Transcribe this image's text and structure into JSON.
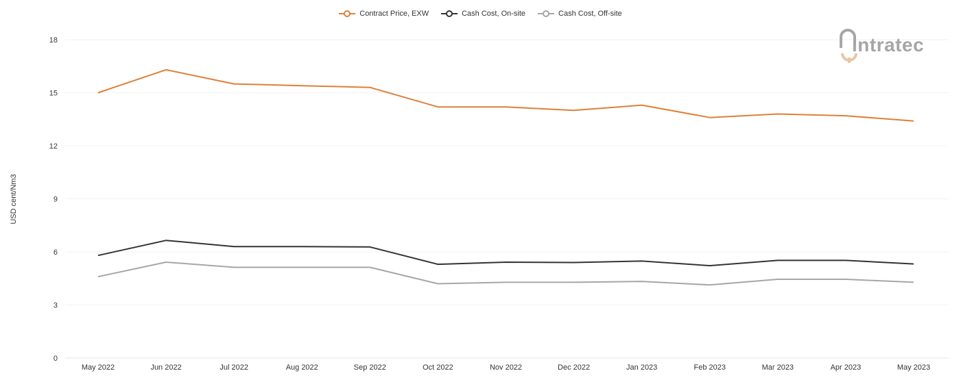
{
  "chart_data": {
    "type": "line",
    "title": "",
    "xlabel": "",
    "ylabel": "USD cent/Nm3",
    "categories": [
      "May 2022",
      "Jun 2022",
      "Jul 2022",
      "Aug 2022",
      "Sep 2022",
      "Oct 2022",
      "Nov 2022",
      "Dec 2022",
      "Jan 2023",
      "Feb 2023",
      "Mar 2023",
      "Apr 2023",
      "May 2023"
    ],
    "ylim": [
      0,
      18
    ],
    "yticks": [
      "0",
      "3",
      "6",
      "9",
      "12",
      "15",
      "18"
    ],
    "grid": true,
    "legend_position": "top-center",
    "series": [
      {
        "name": "Contract Price, EXW",
        "color": "#e07f35",
        "values": [
          15.0,
          16.3,
          15.5,
          15.4,
          15.3,
          14.2,
          14.2,
          14.0,
          14.3,
          13.6,
          13.8,
          13.7,
          13.4
        ]
      },
      {
        "name": "Cash Cost, On-site",
        "color": "#333333",
        "values": [
          5.8,
          6.65,
          6.3,
          6.3,
          6.28,
          5.3,
          5.42,
          5.4,
          5.48,
          5.22,
          5.52,
          5.52,
          5.32
        ]
      },
      {
        "name": "Cash Cost, Off-site",
        "color": "#a6a6a6",
        "values": [
          4.6,
          5.42,
          5.13,
          5.13,
          5.13,
          4.2,
          4.28,
          4.28,
          4.33,
          4.13,
          4.45,
          4.45,
          4.28
        ]
      }
    ]
  },
  "logo": {
    "text": "intratec",
    "primary_color": "#a6a6a6",
    "accent_color": "#e8c6a6"
  }
}
